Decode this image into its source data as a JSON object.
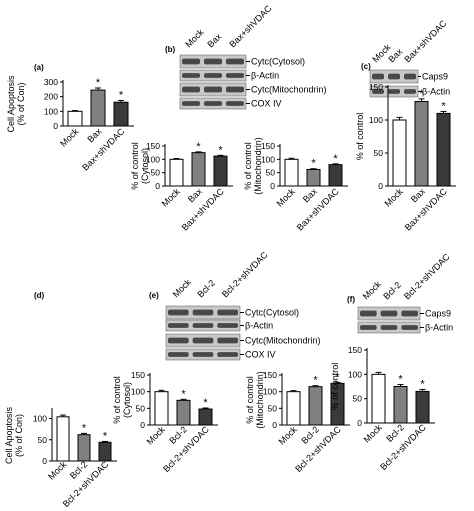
{
  "figure": {
    "colors": {
      "white_bar": "#ffffff",
      "gray_bar": "#808080",
      "dark_bar": "#3a3a3a",
      "blot_bg": "#c8c8c8",
      "band": "#1e1e1e"
    },
    "panel_letters": [
      "(a)",
      "(b)",
      "(c)",
      "(d)",
      "(e)",
      "(f)"
    ],
    "blots": [
      {
        "panel": "b",
        "lanes": [
          "Mock",
          "Bax",
          "Bax+shVDAC"
        ],
        "rows": [
          "Cytc(Cytosol)",
          "β-Actin",
          "Cytc(Mitochondrin)",
          "COX IV"
        ]
      },
      {
        "panel": "c",
        "lanes": [
          "Mock",
          "Bax",
          "Bax+shVDAC"
        ],
        "rows": [
          "Caps9",
          "β-Actin"
        ]
      },
      {
        "panel": "e",
        "lanes": [
          "Mock",
          "Bcl-2",
          "Bcl-2+shVDAC"
        ],
        "rows": [
          "Cytc(Cytosol)",
          "β-Actin",
          "Cytc(Mitochondrin)",
          "COX IV"
        ]
      },
      {
        "panel": "f",
        "lanes": [
          "Mock",
          "Bcl-2",
          "Bcl-2+shVDAC"
        ],
        "rows": [
          "Caps9",
          "β-Actin"
        ]
      }
    ]
  },
  "chart_data": [
    {
      "panel": "a",
      "type": "bar",
      "categories": [
        "Mock",
        "Bax",
        "Bax+shVDAC"
      ],
      "values": [
        100,
        245,
        162
      ],
      "errors": [
        5,
        14,
        12
      ],
      "stars": [
        "",
        "*",
        "*"
      ],
      "ylabel": "Cell Apoptosis\n(% of Con)",
      "ylim": [
        0,
        300
      ],
      "yticks": [
        0,
        100,
        200,
        300
      ]
    },
    {
      "panel": "b1",
      "type": "bar",
      "categories": [
        "Mock",
        "Bax",
        "Bax+shVDAC"
      ],
      "values": [
        100,
        125,
        112
      ],
      "errors": [
        3,
        3,
        3
      ],
      "stars": [
        "",
        "*",
        "*"
      ],
      "ylabel": "% of control\n(Cytosol)",
      "ylim": [
        0,
        150
      ],
      "yticks": [
        0,
        50,
        100,
        150
      ]
    },
    {
      "panel": "b2",
      "type": "bar",
      "categories": [
        "Mock",
        "Bax",
        "Bax+shVDAC"
      ],
      "values": [
        100,
        62,
        80
      ],
      "errors": [
        4,
        3,
        3
      ],
      "stars": [
        "",
        "*",
        "*"
      ],
      "ylabel": "% of control\n(Mitochondrin)",
      "ylim": [
        0,
        150
      ],
      "yticks": [
        0,
        50,
        100,
        150
      ]
    },
    {
      "panel": "c",
      "type": "bar",
      "categories": [
        "Mock",
        "Bax",
        "Bax+shVDAC"
      ],
      "values": [
        100,
        128,
        110
      ],
      "errors": [
        4,
        4,
        3
      ],
      "stars": [
        "",
        "*",
        "*"
      ],
      "ylabel": "% of control",
      "ylim": [
        0,
        150
      ],
      "yticks": [
        0,
        50,
        100,
        150
      ]
    },
    {
      "panel": "d",
      "type": "bar",
      "categories": [
        "Mock",
        "Bcl-2",
        "Bcl-2+shVDAC"
      ],
      "values": [
        104,
        62,
        44
      ],
      "errors": [
        4,
        3,
        2
      ],
      "stars": [
        "",
        "*",
        "*"
      ],
      "ylabel": "Cell Apoptosis\n(% of Con)",
      "ylim": [
        0,
        120
      ],
      "yticks": [
        0,
        50,
        100
      ]
    },
    {
      "panel": "e1",
      "type": "bar",
      "categories": [
        "Mock",
        "Bcl-2",
        "Bcl-2+shVDAC"
      ],
      "values": [
        100,
        74,
        48
      ],
      "errors": [
        4,
        3,
        3
      ],
      "stars": [
        "",
        "*",
        "*"
      ],
      "ylabel": "% of control\n(Cytosol)",
      "ylim": [
        0,
        150
      ],
      "yticks": [
        0,
        50,
        100,
        150
      ]
    },
    {
      "panel": "e2",
      "type": "bar",
      "categories": [
        "Mock",
        "Bcl-2",
        "Bcl-2+shVDAC"
      ],
      "values": [
        100,
        115,
        125
      ],
      "errors": [
        3,
        3,
        3
      ],
      "stars": [
        "",
        "*",
        "*"
      ],
      "ylabel": "% of control\n(Mitochondrin)",
      "ylim": [
        0,
        150
      ],
      "yticks": [
        0,
        50,
        100,
        150
      ]
    },
    {
      "panel": "f",
      "type": "bar",
      "categories": [
        "Mock",
        "Bcl-2",
        "Bcl-2+shVDAC"
      ],
      "values": [
        100,
        75,
        65
      ],
      "errors": [
        4,
        4,
        4
      ],
      "stars": [
        "",
        "*",
        "*"
      ],
      "ylabel": "% of control",
      "ylim": [
        0,
        150
      ],
      "yticks": [
        0,
        50,
        100,
        150
      ]
    }
  ]
}
